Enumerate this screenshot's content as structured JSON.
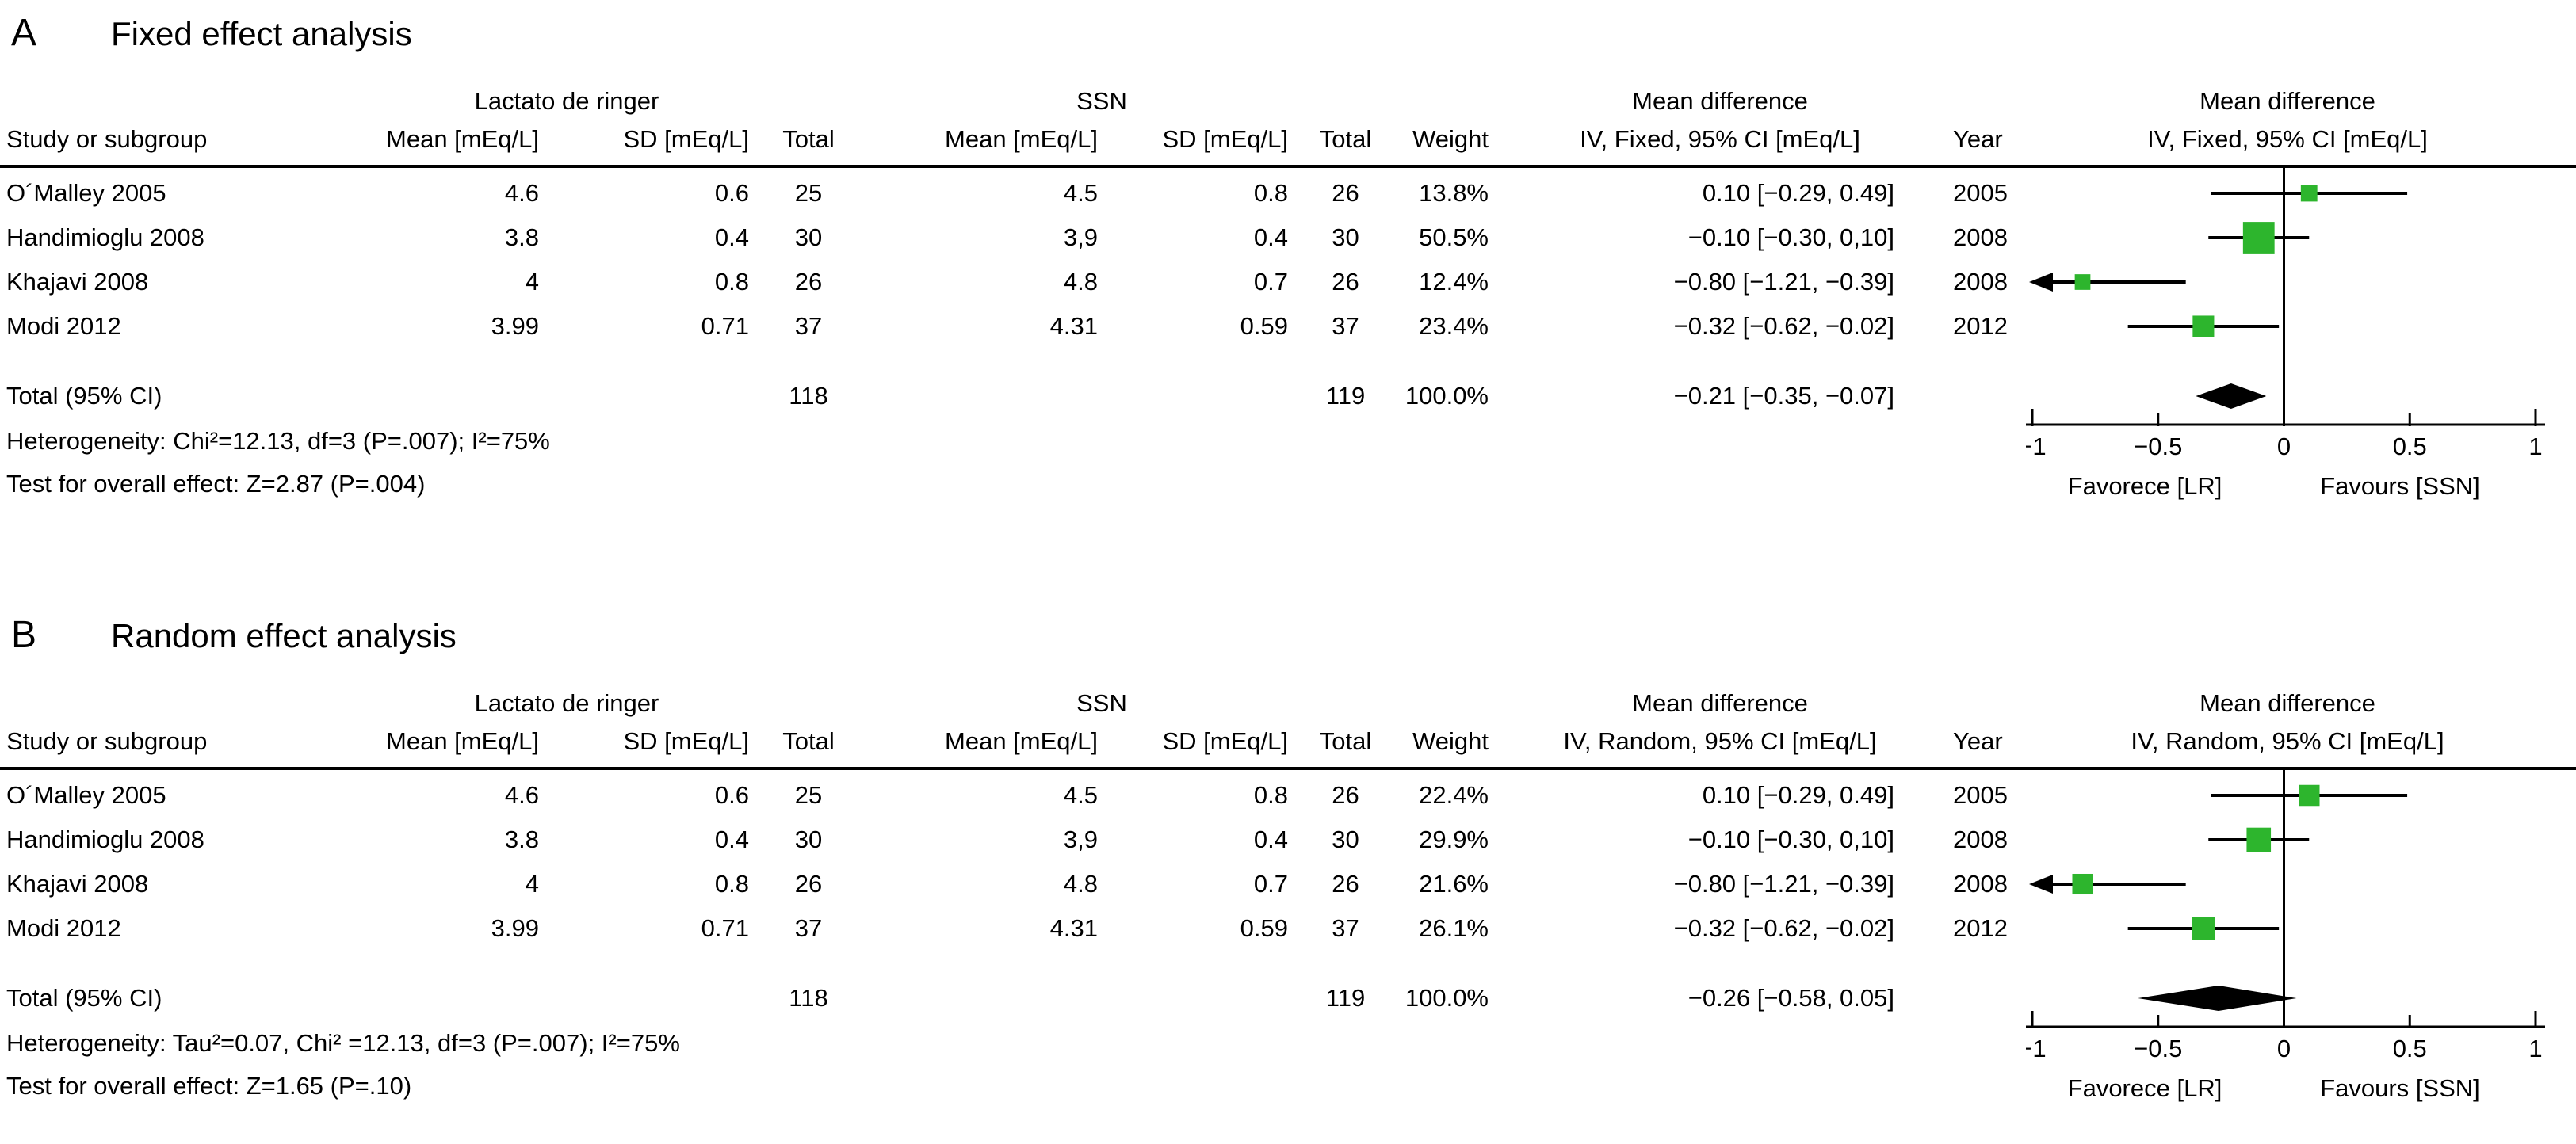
{
  "colors": {
    "square": "#2db52d",
    "line": "#000000",
    "diamond": "#000000"
  },
  "chart_data": {
    "type": "forest_plot",
    "x_axis": {
      "min": -1,
      "max": 1
    },
    "panels": [
      {
        "panel_label": "A",
        "title": "Fixed effect analysis",
        "group1": "Lactato de ringer",
        "group2": "SSN",
        "col_study": "Study or subgroup",
        "col_mean": "Mean [mEq/L]",
        "col_sd": "SD [mEq/L]",
        "col_total": "Total",
        "col_weight": "Weight",
        "col_md_line1": "Mean difference",
        "col_md_line2": "IV, Fixed, 95% CI [mEq/L]",
        "col_year": "Year",
        "col_plot_line1": "Mean difference",
        "col_plot_line2": "IV, Fixed, 95% CI [mEq/L]",
        "studies": [
          {
            "name": "O´Malley 2005",
            "mean1": "4.6",
            "sd1": "0.6",
            "total1": "25",
            "mean2": "4.5",
            "sd2": "0.8",
            "total2": "26",
            "weight": "13.8%",
            "md": "0.10 [−0.29, 0.49]",
            "year": "2005",
            "est": 0.1,
            "ci_lo": -0.29,
            "ci_hi": 0.49,
            "weight_pct": 13.8,
            "clip_left": false
          },
          {
            "name": "Handimioglu 2008",
            "mean1": "3.8",
            "sd1": "0.4",
            "total1": "30",
            "mean2": "3,9",
            "sd2": "0.4",
            "total2": "30",
            "weight": "50.5%",
            "md": "−0.10 [−0.30, 0,10]",
            "year": "2008",
            "est": -0.1,
            "ci_lo": -0.3,
            "ci_hi": 0.1,
            "weight_pct": 50.5,
            "clip_left": false
          },
          {
            "name": "Khajavi 2008",
            "mean1": "4",
            "sd1": "0.8",
            "total1": "26",
            "mean2": "4.8",
            "sd2": "0.7",
            "total2": "26",
            "weight": "12.4%",
            "md": "−0.80 [−1.21, −0.39]",
            "year": "2008",
            "est": -0.8,
            "ci_lo": -1.21,
            "ci_hi": -0.39,
            "weight_pct": 12.4,
            "clip_left": true
          },
          {
            "name": "Modi 2012",
            "mean1": "3.99",
            "sd1": "0.71",
            "total1": "37",
            "mean2": "4.31",
            "sd2": "0.59",
            "total2": "37",
            "weight": "23.4%",
            "md": "−0.32 [−0.62, −0.02]",
            "year": "2012",
            "est": -0.32,
            "ci_lo": -0.62,
            "ci_hi": -0.02,
            "weight_pct": 23.4,
            "clip_left": false
          }
        ],
        "total_row": {
          "label": "Total (95% CI)",
          "total1": "118",
          "total2": "119",
          "weight": "100.0%",
          "md": "−0.21 [−0.35, −0.07]",
          "est": -0.21,
          "ci_lo": -0.35,
          "ci_hi": -0.07
        },
        "heterogeneity": "Heterogeneity: Chi²=12.13, df=3 (P=.007); I²=75%",
        "overall_test": "Test for overall effect: Z=2.87 (P=.004)",
        "axis": {
          "ticks": [
            -1,
            -0.5,
            0,
            0.5,
            1
          ],
          "tick_labels": [
            "−1",
            "−0.5",
            "0",
            "0.5",
            "1"
          ],
          "favor_left": "Favorece [LR]",
          "favor_right": "Favours [SSN]"
        }
      },
      {
        "panel_label": "B",
        "title": "Random effect analysis",
        "group1": "Lactato de ringer",
        "group2": "SSN",
        "col_study": "Study or subgroup",
        "col_mean": "Mean [mEq/L]",
        "col_sd": "SD [mEq/L]",
        "col_total": "Total",
        "col_weight": "Weight",
        "col_md_line1": "Mean difference",
        "col_md_line2": "IV, Random, 95% CI [mEq/L]",
        "col_year": "Year",
        "col_plot_line1": "Mean difference",
        "col_plot_line2": "IV, Random, 95% CI [mEq/L]",
        "studies": [
          {
            "name": "O´Malley 2005",
            "mean1": "4.6",
            "sd1": "0.6",
            "total1": "25",
            "mean2": "4.5",
            "sd2": "0.8",
            "total2": "26",
            "weight": "22.4%",
            "md": "0.10 [−0.29, 0.49]",
            "year": "2005",
            "est": 0.1,
            "ci_lo": -0.29,
            "ci_hi": 0.49,
            "weight_pct": 22.4,
            "clip_left": false
          },
          {
            "name": "Handimioglu 2008",
            "mean1": "3.8",
            "sd1": "0.4",
            "total1": "30",
            "mean2": "3,9",
            "sd2": "0.4",
            "total2": "30",
            "weight": "29.9%",
            "md": "−0.10 [−0.30, 0,10]",
            "year": "2008",
            "est": -0.1,
            "ci_lo": -0.3,
            "ci_hi": 0.1,
            "weight_pct": 29.9,
            "clip_left": false
          },
          {
            "name": "Khajavi 2008",
            "mean1": "4",
            "sd1": "0.8",
            "total1": "26",
            "mean2": "4.8",
            "sd2": "0.7",
            "total2": "26",
            "weight": "21.6%",
            "md": "−0.80 [−1.21, −0.39]",
            "year": "2008",
            "est": -0.8,
            "ci_lo": -1.21,
            "ci_hi": -0.39,
            "weight_pct": 21.6,
            "clip_left": true
          },
          {
            "name": "Modi 2012",
            "mean1": "3.99",
            "sd1": "0.71",
            "total1": "37",
            "mean2": "4.31",
            "sd2": "0.59",
            "total2": "37",
            "weight": "26.1%",
            "md": "−0.32 [−0.62, −0.02]",
            "year": "2012",
            "est": -0.32,
            "ci_lo": -0.62,
            "ci_hi": -0.02,
            "weight_pct": 26.1,
            "clip_left": false
          }
        ],
        "total_row": {
          "label": "Total (95% CI)",
          "total1": "118",
          "total2": "119",
          "weight": "100.0%",
          "md": "−0.26 [−0.58, 0.05]",
          "est": -0.26,
          "ci_lo": -0.58,
          "ci_hi": 0.05
        },
        "heterogeneity": "Heterogeneity: Tau²=0.07, Chi² =12.13, df=3 (P=.007); I²=75%",
        "overall_test": "Test for overall effect: Z=1.65 (P=.10)",
        "axis": {
          "ticks": [
            -1,
            -0.5,
            0,
            0.5,
            1
          ],
          "tick_labels": [
            "−1",
            "−0.5",
            "0",
            "0.5",
            "1"
          ],
          "favor_left": "Favorece [LR]",
          "favor_right": "Favours [SSN]"
        }
      }
    ]
  }
}
